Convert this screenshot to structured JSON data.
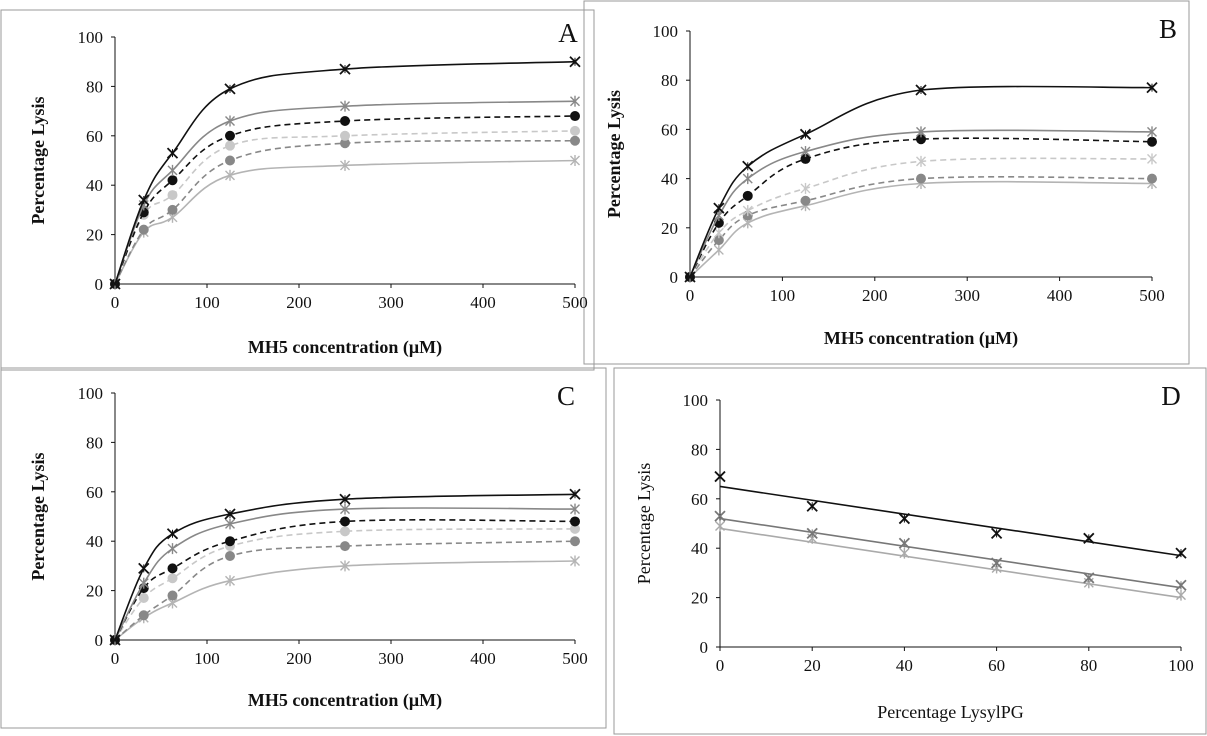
{
  "chart_data": [
    {
      "panel": "A",
      "type": "line",
      "title": "A",
      "xlabel": "MH5 concentration  (μM)",
      "ylabel": "Percentage Lysis",
      "xlim": [
        0,
        500
      ],
      "ylim": [
        0,
        100
      ],
      "xticks": [
        "0",
        "100",
        "200",
        "300",
        "400",
        "500"
      ],
      "yticks": [
        "0",
        "20",
        "40",
        "60",
        "80",
        "100"
      ],
      "grid": false,
      "x": [
        0,
        31.25,
        62.5,
        125,
        250,
        500
      ],
      "series": [
        {
          "values": [
            0,
            34,
            53,
            79,
            87,
            90
          ],
          "color": "#111111",
          "dash": "solid",
          "marker": "x"
        },
        {
          "values": [
            0,
            32,
            46,
            66,
            72,
            74
          ],
          "color": "#888888",
          "dash": "solid",
          "marker": "star"
        },
        {
          "values": [
            0,
            29,
            42,
            60,
            66,
            68
          ],
          "color": "#111111",
          "dash": "dashed",
          "marker": "circle"
        },
        {
          "values": [
            0,
            28,
            36,
            56,
            60,
            62
          ],
          "color": "#c8c8c8",
          "dash": "dashed",
          "marker": "circle"
        },
        {
          "values": [
            0,
            22,
            30,
            50,
            57,
            58
          ],
          "color": "#888888",
          "dash": "dashed",
          "marker": "circle"
        },
        {
          "values": [
            0,
            21,
            27,
            44,
            48,
            50
          ],
          "color": "#b4b4b4",
          "dash": "solid",
          "marker": "star"
        }
      ]
    },
    {
      "panel": "B",
      "type": "line",
      "title": "B",
      "xlabel": "MH5 concentration  (μM)",
      "ylabel": "Percentage Lysis",
      "xlim": [
        0,
        500
      ],
      "ylim": [
        0,
        100
      ],
      "xticks": [
        "0",
        "100",
        "200",
        "300",
        "400",
        "500"
      ],
      "yticks": [
        "0",
        "20",
        "40",
        "60",
        "80",
        "100"
      ],
      "grid": false,
      "x": [
        0,
        31.25,
        62.5,
        125,
        250,
        500
      ],
      "series": [
        {
          "values": [
            0,
            28,
            45,
            58,
            76,
            77
          ],
          "color": "#111111",
          "dash": "solid",
          "marker": "x"
        },
        {
          "values": [
            0,
            25,
            40,
            51,
            59,
            59
          ],
          "color": "#888888",
          "dash": "solid",
          "marker": "star"
        },
        {
          "values": [
            0,
            22,
            33,
            48,
            56,
            55
          ],
          "color": "#111111",
          "dash": "dashed",
          "marker": "circle"
        },
        {
          "values": [
            0,
            18,
            27,
            36,
            47,
            48
          ],
          "color": "#c8c8c8",
          "dash": "dashed",
          "marker": "star"
        },
        {
          "values": [
            0,
            15,
            25,
            31,
            40,
            40
          ],
          "color": "#888888",
          "dash": "dashed",
          "marker": "circle"
        },
        {
          "values": [
            0,
            11,
            22,
            29,
            38,
            38
          ],
          "color": "#b4b4b4",
          "dash": "solid",
          "marker": "star"
        }
      ]
    },
    {
      "panel": "C",
      "type": "line",
      "title": "C",
      "xlabel": "MH5 concentration  (μM)",
      "ylabel": "Percentage Lysis",
      "xlim": [
        0,
        500
      ],
      "ylim": [
        0,
        100
      ],
      "xticks": [
        "0",
        "100",
        "200",
        "300",
        "400",
        "500"
      ],
      "yticks": [
        "0",
        "20",
        "40",
        "60",
        "80",
        "100"
      ],
      "grid": false,
      "x": [
        0,
        31.25,
        62.5,
        125,
        250,
        500
      ],
      "series": [
        {
          "values": [
            0,
            29,
            43,
            51,
            57,
            59
          ],
          "color": "#111111",
          "dash": "solid",
          "marker": "x"
        },
        {
          "values": [
            0,
            23,
            37,
            47,
            53,
            53
          ],
          "color": "#888888",
          "dash": "solid",
          "marker": "star"
        },
        {
          "values": [
            0,
            21,
            29,
            40,
            48,
            48
          ],
          "color": "#111111",
          "dash": "dashed",
          "marker": "circle"
        },
        {
          "values": [
            0,
            17,
            25,
            38,
            44,
            45
          ],
          "color": "#c8c8c8",
          "dash": "dashed",
          "marker": "circle"
        },
        {
          "values": [
            0,
            10,
            18,
            34,
            38,
            40
          ],
          "color": "#888888",
          "dash": "dashed",
          "marker": "circle"
        },
        {
          "values": [
            0,
            9,
            15,
            24,
            30,
            32
          ],
          "color": "#b4b4b4",
          "dash": "solid",
          "marker": "star"
        }
      ]
    },
    {
      "panel": "D",
      "type": "scatter",
      "title": "D",
      "xlabel": "Percentage  LysylPG",
      "ylabel": "Percentage  Lysis",
      "xlim": [
        0,
        100
      ],
      "ylim": [
        0,
        100
      ],
      "xticks": [
        "0",
        "20",
        "40",
        "60",
        "80",
        "100"
      ],
      "yticks": [
        "0",
        "20",
        "40",
        "60",
        "80",
        "100"
      ],
      "grid": false,
      "x": [
        0,
        20,
        40,
        60,
        80,
        100
      ],
      "series": [
        {
          "values": [
            69,
            57,
            52,
            46,
            44,
            38
          ],
          "fit": [
            65,
            37
          ],
          "color": "#111111",
          "marker": "x"
        },
        {
          "values": [
            53,
            46,
            42,
            34,
            28,
            25
          ],
          "fit": [
            52,
            24
          ],
          "color": "#777777",
          "marker": "x"
        },
        {
          "values": [
            49,
            44,
            38,
            32,
            26,
            21
          ],
          "fit": [
            48,
            20
          ],
          "color": "#aaaaaa",
          "marker": "star"
        }
      ]
    }
  ]
}
